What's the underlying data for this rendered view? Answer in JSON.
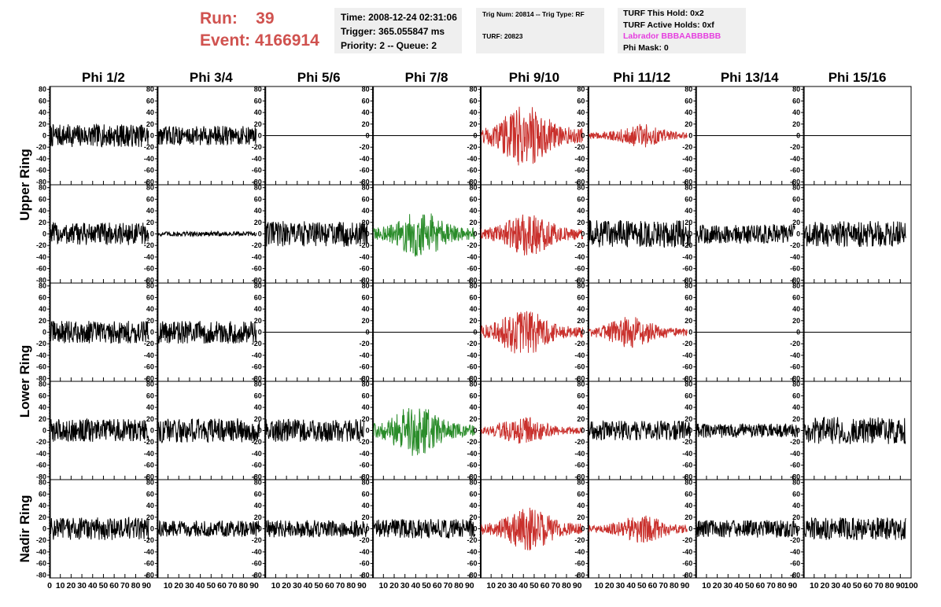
{
  "header": {
    "run_label": "Run:",
    "run_value": "39",
    "event_label": "Event:",
    "event_value": "4166914",
    "time": "Time: 2008-12-24 02:31:06",
    "trigger": "Trigger: 365.055847 ms",
    "priority": "Priority: 2 -- Queue: 2",
    "trig_num": "Trig Num: 20814 -- Trig Type: RF",
    "turf": "TURF: 20823",
    "turf_this_hold": "TURF This Hold: 0x2",
    "turf_active_holds": "TURF Active Holds: 0xf",
    "labrador": "Labrador BBBAABBBBB",
    "phi_mask": "Phi Mask: 0"
  },
  "chart_data": {
    "type": "line",
    "columns": [
      "Phi 1/2",
      "Phi 3/4",
      "Phi 5/6",
      "Phi 7/8",
      "Phi 9/10",
      "Phi 11/12",
      "Phi 13/14",
      "Phi 15/16"
    ],
    "rings": [
      {
        "label": "Upper Ring",
        "rows": [
          0,
          1
        ]
      },
      {
        "label": "Lower Ring",
        "rows": [
          2,
          3
        ]
      },
      {
        "label": "Nadir Ring",
        "rows": [
          4
        ]
      }
    ],
    "xlim": [
      0,
      100
    ],
    "ylim": [
      -85,
      85
    ],
    "x_ticks": [
      0,
      10,
      20,
      30,
      40,
      50,
      60,
      70,
      80,
      90,
      100
    ],
    "y_ticks": [
      -80,
      -60,
      -40,
      -20,
      0,
      20,
      40,
      60,
      80
    ],
    "colors": {
      "normal": "#000000",
      "red": "#c9302c",
      "green": "#2a8c2a",
      "flat": "#000000"
    },
    "panels": [
      [
        {
          "style": "normal",
          "amp": 14,
          "env": "flat",
          "x_end": 92
        },
        {
          "style": "normal",
          "amp": 12,
          "env": "flat",
          "x_end": 92
        },
        {
          "style": "flat"
        },
        {
          "style": "flat"
        },
        {
          "style": "red",
          "amp": 32,
          "env": "burst",
          "peak": 42,
          "x_end": 95
        },
        {
          "style": "red",
          "amp": 12,
          "env": "burst",
          "peak": 50,
          "x_end": 92
        },
        {
          "style": "flat"
        },
        {
          "style": "flat"
        }
      ],
      [
        {
          "style": "normal",
          "amp": 14,
          "env": "flat",
          "x_end": 92
        },
        {
          "style": "normal",
          "amp": 3,
          "env": "flat",
          "x_end": 92
        },
        {
          "style": "normal",
          "amp": 16,
          "env": "flat",
          "x_end": 95
        },
        {
          "style": "green",
          "amp": 24,
          "env": "burst",
          "peak": 45,
          "x_end": 95
        },
        {
          "style": "red",
          "amp": 22,
          "env": "burst",
          "peak": 45,
          "x_end": 95
        },
        {
          "style": "normal",
          "amp": 17,
          "env": "flat",
          "x_end": 95
        },
        {
          "style": "normal",
          "amp": 12,
          "env": "flat",
          "x_end": 92
        },
        {
          "style": "normal",
          "amp": 16,
          "env": "flat",
          "x_end": 95
        }
      ],
      [
        {
          "style": "normal",
          "amp": 14,
          "env": "flat",
          "x_end": 92
        },
        {
          "style": "normal",
          "amp": 14,
          "env": "flat",
          "x_end": 92
        },
        {
          "style": "flat"
        },
        {
          "style": "flat"
        },
        {
          "style": "red",
          "amp": 24,
          "env": "burst",
          "peak": 40,
          "x_end": 95
        },
        {
          "style": "red",
          "amp": 16,
          "env": "burst",
          "peak": 40,
          "x_end": 92
        },
        {
          "style": "flat"
        },
        {
          "style": "flat"
        }
      ],
      [
        {
          "style": "normal",
          "amp": 14,
          "env": "flat",
          "x_end": 92
        },
        {
          "style": "normal",
          "amp": 15,
          "env": "flat",
          "x_end": 95
        },
        {
          "style": "normal",
          "amp": 14,
          "env": "flat",
          "x_end": 92
        },
        {
          "style": "green",
          "amp": 26,
          "env": "burst",
          "peak": 40,
          "x_end": 95
        },
        {
          "style": "red",
          "amp": 14,
          "env": "burst",
          "peak": 40,
          "x_end": 95
        },
        {
          "style": "normal",
          "amp": 12,
          "env": "flat",
          "x_end": 95
        },
        {
          "style": "normal",
          "amp": 9,
          "env": "flat",
          "x_end": 95
        },
        {
          "style": "normal",
          "amp": 17,
          "env": "flat",
          "x_end": 95
        }
      ],
      [
        {
          "style": "normal",
          "amp": 14,
          "env": "flat",
          "x_end": 92
        },
        {
          "style": "normal",
          "amp": 10,
          "env": "flat",
          "x_end": 95
        },
        {
          "style": "normal",
          "amp": 11,
          "env": "flat",
          "x_end": 95
        },
        {
          "style": "normal",
          "amp": 12,
          "env": "flat",
          "x_end": 95
        },
        {
          "style": "red",
          "amp": 22,
          "env": "burst",
          "peak": 45,
          "x_end": 95
        },
        {
          "style": "red",
          "amp": 14,
          "env": "burst",
          "peak": 50,
          "x_end": 92
        },
        {
          "style": "normal",
          "amp": 11,
          "env": "flat",
          "x_end": 95
        },
        {
          "style": "normal",
          "amp": 14,
          "env": "flat",
          "x_end": 95
        }
      ]
    ]
  }
}
